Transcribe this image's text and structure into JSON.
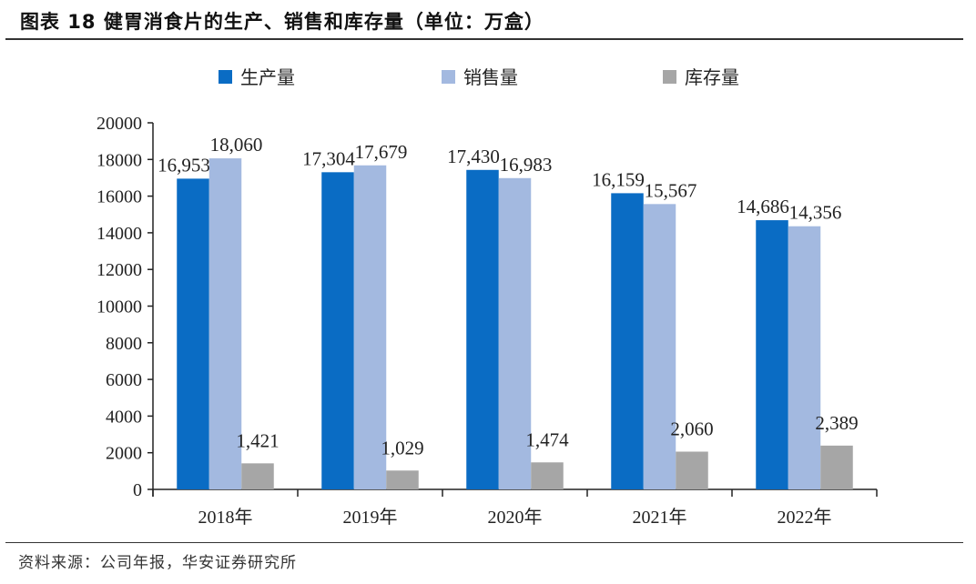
{
  "title": "图表 18 健胃消食片的生产、销售和库存量（单位：万盒）",
  "source": "资料来源：公司年报，华安证券研究所",
  "chart_data": {
    "type": "bar",
    "title": "图表 18 健胃消食片的生产、销售和库存量（单位：万盒）",
    "categories": [
      "2018年",
      "2019年",
      "2020年",
      "2021年",
      "2022年"
    ],
    "series": [
      {
        "name": "生产量",
        "color": "#0a6cc4",
        "values": [
          16953,
          17304,
          17430,
          16159,
          14686
        ],
        "labels": [
          "16,953",
          "17,304",
          "17,430",
          "16,159",
          "14,686"
        ]
      },
      {
        "name": "销售量",
        "color": "#a3b9e0",
        "values": [
          18060,
          17679,
          16983,
          15567,
          14356
        ],
        "labels": [
          "18,060",
          "17,679",
          "16,983",
          "15,567",
          "14,356"
        ]
      },
      {
        "name": "库存量",
        "color": "#a6a6a6",
        "values": [
          1421,
          1029,
          1474,
          2060,
          2389
        ],
        "labels": [
          "1,421",
          "1,029",
          "1,474",
          "2,060",
          "2,389"
        ]
      }
    ],
    "ylim": [
      0,
      20000
    ],
    "yticks": [
      "0",
      "2000",
      "4000",
      "6000",
      "8000",
      "10000",
      "12000",
      "14000",
      "16000",
      "18000",
      "20000"
    ],
    "grid": false,
    "legend": "top"
  }
}
